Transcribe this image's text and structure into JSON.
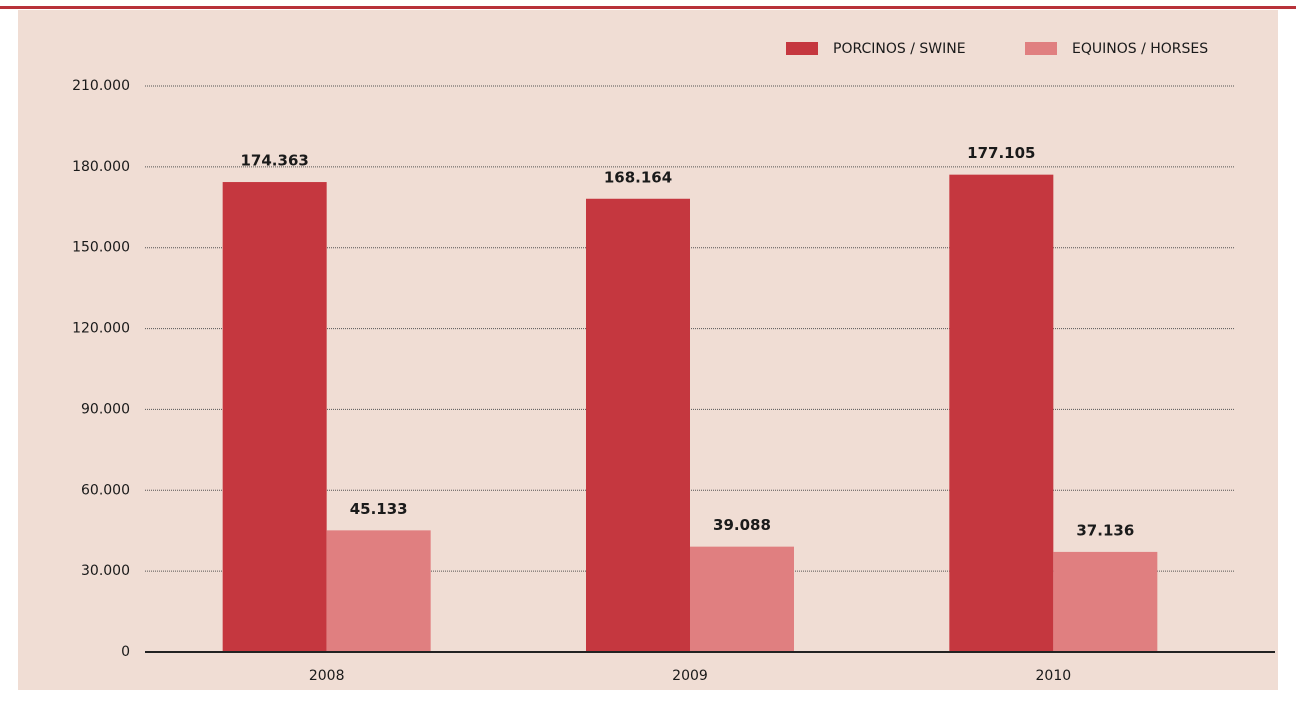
{
  "chart_data": {
    "type": "bar",
    "categories": [
      "2008",
      "2009",
      "2010"
    ],
    "series": [
      {
        "name": "PORCINOS / SWINE",
        "color": "#c5373f",
        "values": [
          174363,
          168164,
          177105
        ],
        "value_labels": [
          "174.363",
          "168.164",
          "177.105"
        ]
      },
      {
        "name": "EQUINOS / HORSES",
        "color": "#e07f80",
        "values": [
          45133,
          39088,
          37136
        ],
        "value_labels": [
          "45.133",
          "39.088",
          "37.136"
        ]
      }
    ],
    "ylim": [
      0,
      210000
    ],
    "yticks": [
      0,
      {
        "value": 30000,
        "label": "30.000"
      },
      {
        "value": 60000,
        "label": "60.000"
      },
      {
        "value": 90000,
        "label": "90.000"
      },
      {
        "value": 120000,
        "label": "120.000"
      },
      {
        "value": 150000,
        "label": "150.000"
      },
      {
        "value": 180000,
        "label": "180.000"
      },
      {
        "value": 210000,
        "label": "210.000"
      }
    ],
    "grid": true,
    "legend": "top-right"
  }
}
